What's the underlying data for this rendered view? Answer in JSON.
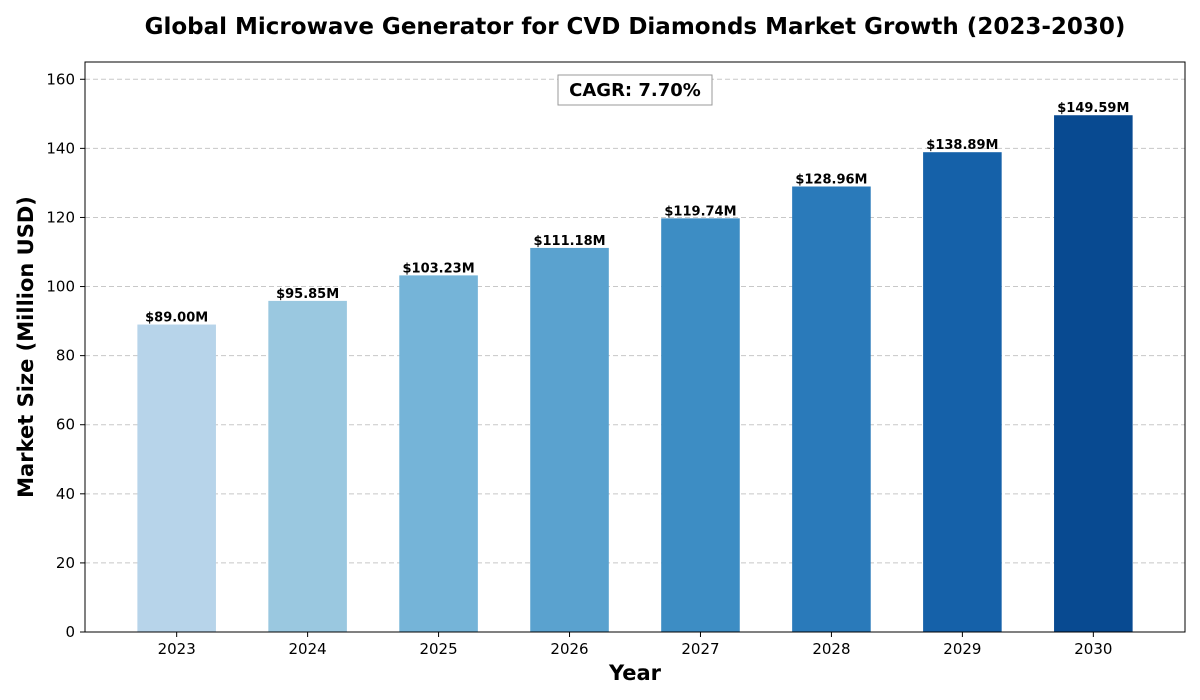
{
  "chart_data": {
    "type": "bar",
    "title": "Global Microwave Generator for CVD Diamonds Market Growth (2023-2030)",
    "xlabel": "Year",
    "ylabel": "Market Size (Million USD)",
    "categories": [
      "2023",
      "2024",
      "2025",
      "2026",
      "2027",
      "2028",
      "2029",
      "2030"
    ],
    "values": [
      89.0,
      95.85,
      103.23,
      111.18,
      119.74,
      128.96,
      138.89,
      149.59
    ],
    "data_labels": [
      "$89.00M",
      "$95.85M",
      "$103.23M",
      "$111.18M",
      "$119.74M",
      "$128.96M",
      "$138.89M",
      "$149.59M"
    ],
    "colors": [
      "#b7d4ea",
      "#9ac8e0",
      "#75b4d8",
      "#5aa2cf",
      "#3d8dc4",
      "#2a7aba",
      "#1561a9",
      "#084a91"
    ],
    "ylim": [
      0,
      165
    ],
    "yticks": [
      0,
      20,
      40,
      60,
      80,
      100,
      120,
      140,
      160
    ],
    "grid": true,
    "annotation": "CAGR: 7.70%"
  }
}
